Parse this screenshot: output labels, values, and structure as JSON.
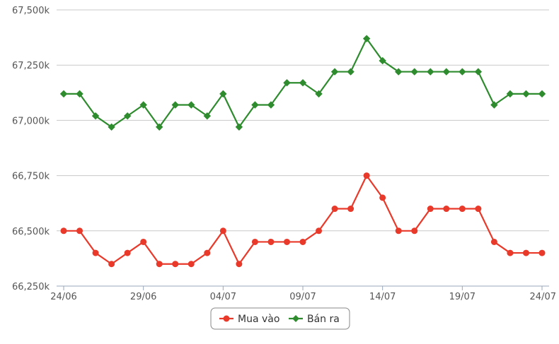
{
  "chart_data": {
    "type": "line",
    "x": [
      "24/06",
      "25/06",
      "26/06",
      "27/06",
      "28/06",
      "29/06",
      "30/06",
      "01/07",
      "02/07",
      "03/07",
      "04/07",
      "05/07",
      "06/07",
      "07/07",
      "08/07",
      "09/07",
      "10/07",
      "11/07",
      "12/07",
      "13/07",
      "14/07",
      "15/07",
      "16/07",
      "17/07",
      "18/07",
      "19/07",
      "20/07",
      "21/07",
      "22/07",
      "23/07",
      "24/07"
    ],
    "x_tick_labels": [
      "24/06",
      "29/06",
      "04/07",
      "09/07",
      "14/07",
      "19/07",
      "24/07"
    ],
    "series": [
      {
        "name": "Mua vào",
        "color": "#e8392a",
        "marker": "circle",
        "values": [
          66500,
          66500,
          66400,
          66350,
          66400,
          66450,
          66350,
          66350,
          66350,
          66400,
          66500,
          66350,
          66450,
          66450,
          66450,
          66450,
          66500,
          66600,
          66600,
          66750,
          66650,
          66500,
          66500,
          66600,
          66600,
          66600,
          66600,
          66450,
          66400,
          66400,
          66400
        ]
      },
      {
        "name": "Bán ra",
        "color": "#2e8b2e",
        "marker": "diamond",
        "values": [
          67120,
          67120,
          67020,
          66970,
          67020,
          67070,
          66970,
          67070,
          67070,
          67020,
          67120,
          66970,
          67070,
          67070,
          67170,
          67170,
          67120,
          67220,
          67220,
          67370,
          67270,
          67220,
          67220,
          67220,
          67220,
          67220,
          67220,
          67070,
          67120,
          67120,
          67120
        ]
      }
    ],
    "y_ticks": [
      66250,
      66500,
      66750,
      67000,
      67250,
      67500
    ],
    "y_tick_labels": [
      "66,250k",
      "66,500k",
      "66,750k",
      "67,000k",
      "67,250k",
      "67,500k"
    ],
    "ylim": [
      66250,
      67500
    ],
    "grid": true,
    "legend_position": "bottom-center",
    "title": "",
    "xlabel": "",
    "ylabel": ""
  }
}
